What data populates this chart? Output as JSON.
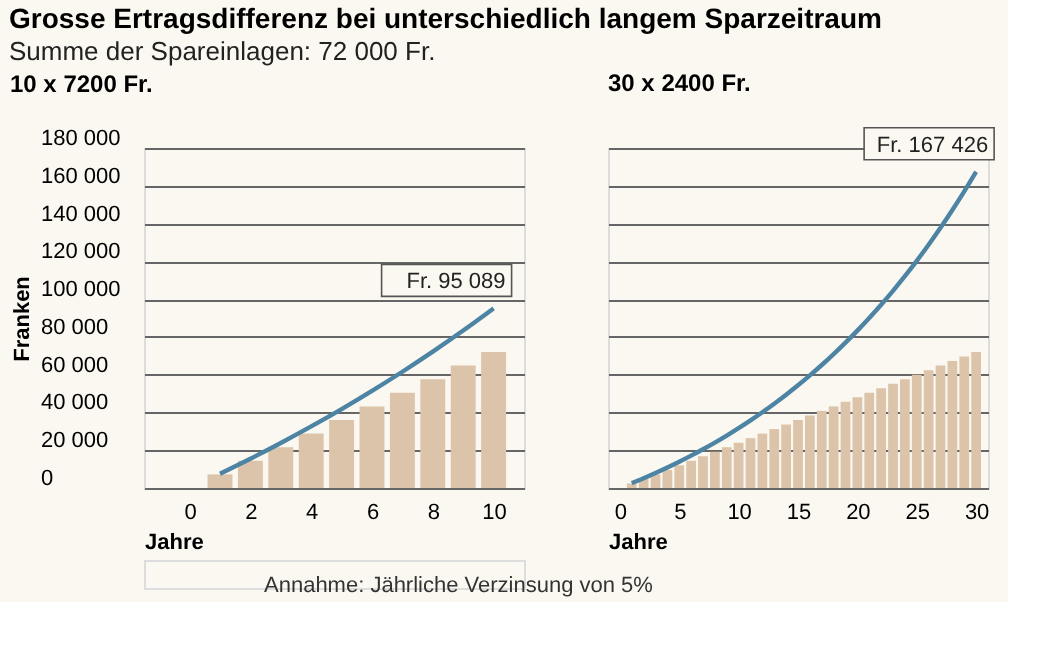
{
  "chart_data": [
    {
      "type": "bar",
      "title": "10 x 7200 Fr.",
      "xlabel": "Jahre",
      "ylabel": "Franken",
      "x": [
        1,
        2,
        3,
        4,
        5,
        6,
        7,
        8,
        9,
        10
      ],
      "series": [
        {
          "color": "#dcc4aa",
          "values": [
            7200,
            14400,
            21600,
            28800,
            36000,
            43200,
            50400,
            57600,
            64800,
            72000
          ]
        },
        {
          "type": "line",
          "color": "#4d84a4",
          "values": [
            7560,
            15498,
            23833,
            32585,
            41774,
            51423,
            61554,
            72192,
            83362,
            95089
          ]
        }
      ],
      "xlim": [
        -1.5,
        11
      ],
      "xticks": [
        0,
        2,
        4,
        6,
        8,
        10
      ],
      "ylim": [
        0,
        180000
      ],
      "yticks": [
        {
          "value": 0,
          "label": "0"
        },
        {
          "value": 20000,
          "label": "20 000"
        },
        {
          "value": 40000,
          "label": "40 000"
        },
        {
          "value": 60000,
          "label": "60 000"
        },
        {
          "value": 80000,
          "label": "80 000"
        },
        {
          "value": 100000,
          "label": "100 000"
        },
        {
          "value": 120000,
          "label": "120 000"
        },
        {
          "value": 140000,
          "label": "140 000"
        },
        {
          "value": 160000,
          "label": "160 000"
        },
        {
          "value": 180000,
          "label": "180 000"
        }
      ],
      "grid": "y",
      "legend": false,
      "annotations": [
        "Grosse Ertragsdifferenz bei unterschiedlich langem Sparzeitraum",
        "Summe der Spareinlagen: 72 000 Fr.",
        {
          "text": "Fr. 95 089",
          "x": 10,
          "y": 95089
        },
        "Annahme: Jährliche Verzinsung von 5%"
      ]
    },
    {
      "type": "bar",
      "title": "30 x 2400 Fr.",
      "xlabel": "Jahre",
      "x": [
        1,
        2,
        3,
        4,
        5,
        6,
        7,
        8,
        9,
        10,
        11,
        12,
        13,
        14,
        15,
        16,
        17,
        18,
        19,
        20,
        21,
        22,
        23,
        24,
        25,
        26,
        27,
        28,
        29,
        30
      ],
      "series": [
        {
          "color": "#dcc4aa",
          "values": [
            2400,
            4800,
            7200,
            9600,
            12000,
            14400,
            16800,
            19200,
            21600,
            24000,
            26400,
            28800,
            31200,
            33600,
            36000,
            38400,
            40800,
            43200,
            45600,
            48000,
            50400,
            52800,
            55200,
            57600,
            60000,
            62400,
            64800,
            67200,
            69600,
            72000
          ]
        },
        {
          "type": "line",
          "color": "#4d84a4",
          "values": [
            2520,
            5166,
            7944,
            10862,
            13925,
            17141,
            20518,
            24064,
            27787,
            31696,
            35801,
            40111,
            44637,
            49389,
            54378,
            59617,
            65118,
            70894,
            76958,
            83326,
            90013,
            97033,
            104405,
            112145,
            120272,
            128806,
            137766,
            147174,
            157053,
            167426
          ]
        }
      ],
      "xlim": [
        -1,
        31
      ],
      "xticks": [
        0,
        5,
        10,
        15,
        20,
        25,
        30
      ],
      "ylim": [
        0,
        180000
      ],
      "yticks": [
        0,
        20000,
        40000,
        60000,
        80000,
        100000,
        120000,
        140000,
        160000,
        180000
      ],
      "grid": "y",
      "legend": false,
      "tick_labels": "x",
      "annotations": [
        {
          "text": "Fr. 167 426",
          "x": 30,
          "y": 167426
        }
      ]
    }
  ]
}
